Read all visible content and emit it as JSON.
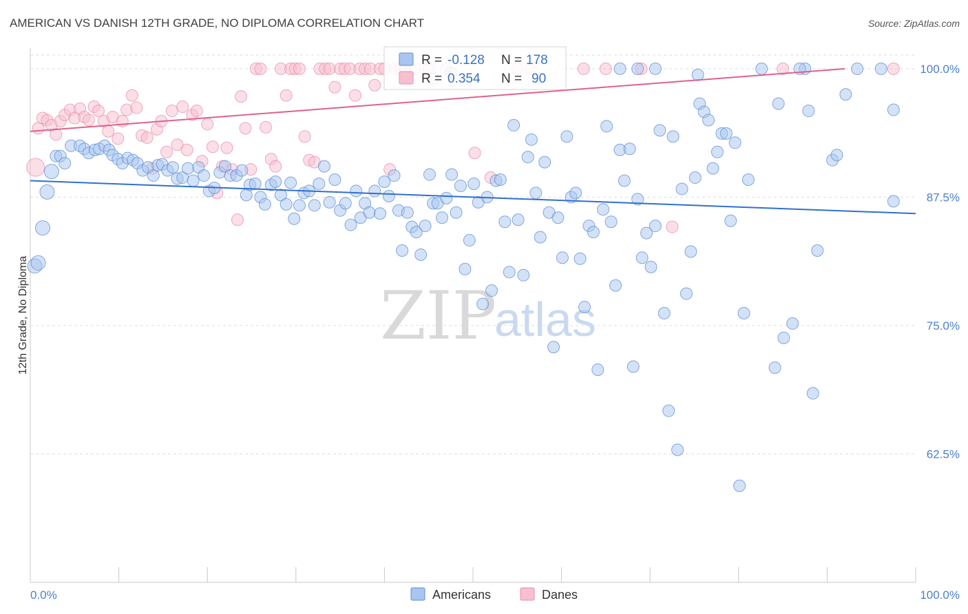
{
  "title": "AMERICAN VS DANISH 12TH GRADE, NO DIPLOMA CORRELATION CHART",
  "source": "Source: ZipAtlas.com",
  "watermark": {
    "zip": "ZIP",
    "atlas": "atlas"
  },
  "legend": {
    "r_label": "R =",
    "n_label": "N =",
    "rows": [
      {
        "r": "-0.128",
        "n": "178"
      },
      {
        "r": "0.354",
        "n": "90"
      }
    ]
  },
  "bottom_legend": [
    "Americans",
    "Danes"
  ],
  "colors": {
    "americans_fill": "#a9c6f0",
    "americans_stroke": "#5b8ed8",
    "americans_line": "#2f6fd0",
    "danes_fill": "#f7bfd0",
    "danes_stroke": "#e98cab",
    "danes_line": "#e0608a",
    "value_text": "#3a70c8",
    "grid": "#dddddd"
  },
  "chart_data": {
    "type": "scatter",
    "title": "AMERICAN VS DANISH 12TH GRADE, NO DIPLOMA CORRELATION CHART",
    "xlabel": "",
    "ylabel": "12th Grade, No Diploma",
    "xlim": [
      0,
      100
    ],
    "ylim": [
      50,
      102
    ],
    "y_ticks": [
      {
        "value": 100,
        "label": "100.0%"
      },
      {
        "value": 87.5,
        "label": "87.5%"
      },
      {
        "value": 75,
        "label": "75.0%"
      },
      {
        "value": 62.5,
        "label": "62.5%"
      }
    ],
    "x_ticks": [
      {
        "value": 0,
        "label": "0.0%"
      },
      {
        "value": 100,
        "label": "100.0%"
      }
    ],
    "grid": true,
    "legend_position": "top-center",
    "series": [
      {
        "name": "Americans",
        "r": -0.128,
        "n": 178,
        "trend": [
          [
            0,
            89.1
          ],
          [
            100,
            85.9
          ]
        ],
        "points": [
          [
            0.5,
            80.8
          ],
          [
            0.9,
            81.1
          ],
          [
            1.4,
            84.5
          ],
          [
            1.9,
            88.0
          ],
          [
            2.4,
            90.0
          ],
          [
            2.9,
            91.5
          ],
          [
            3.4,
            91.5
          ],
          [
            3.9,
            90.8
          ],
          [
            4.6,
            92.5
          ],
          [
            5.6,
            92.5
          ],
          [
            6.1,
            92.2
          ],
          [
            6.6,
            91.8
          ],
          [
            7.3,
            92.1
          ],
          [
            7.8,
            92.2
          ],
          [
            8.4,
            92.5
          ],
          [
            8.9,
            92.1
          ],
          [
            9.3,
            91.6
          ],
          [
            9.9,
            91.2
          ],
          [
            10.4,
            90.8
          ],
          [
            11.0,
            91.3
          ],
          [
            11.6,
            91.1
          ],
          [
            12.1,
            90.8
          ],
          [
            12.7,
            90.1
          ],
          [
            13.3,
            90.4
          ],
          [
            13.9,
            89.6
          ],
          [
            14.4,
            90.6
          ],
          [
            14.9,
            90.7
          ],
          [
            15.5,
            90.1
          ],
          [
            16.1,
            90.4
          ],
          [
            16.6,
            89.3
          ],
          [
            17.2,
            89.4
          ],
          [
            17.8,
            90.3
          ],
          [
            18.4,
            89.1
          ],
          [
            19.0,
            90.4
          ],
          [
            19.6,
            89.6
          ],
          [
            20.2,
            88.1
          ],
          [
            20.8,
            88.4
          ],
          [
            21.4,
            89.9
          ],
          [
            22.0,
            90.5
          ],
          [
            22.6,
            89.6
          ],
          [
            23.3,
            89.6
          ],
          [
            23.9,
            90.1
          ],
          [
            24.4,
            87.7
          ],
          [
            24.8,
            88.7
          ],
          [
            25.4,
            88.8
          ],
          [
            26.0,
            87.5
          ],
          [
            26.5,
            86.8
          ],
          [
            27.2,
            88.7
          ],
          [
            27.7,
            89.0
          ],
          [
            28.3,
            87.7
          ],
          [
            28.9,
            86.8
          ],
          [
            29.4,
            88.9
          ],
          [
            29.8,
            85.4
          ],
          [
            30.4,
            86.7
          ],
          [
            30.9,
            87.9
          ],
          [
            31.5,
            88.1
          ],
          [
            32.1,
            86.7
          ],
          [
            32.6,
            88.8
          ],
          [
            33.2,
            90.5
          ],
          [
            33.8,
            87.0
          ],
          [
            34.4,
            89.2
          ],
          [
            35.0,
            86.2
          ],
          [
            35.6,
            86.9
          ],
          [
            36.2,
            84.8
          ],
          [
            36.8,
            88.1
          ],
          [
            37.3,
            85.5
          ],
          [
            37.8,
            86.9
          ],
          [
            38.3,
            86.0
          ],
          [
            38.9,
            88.1
          ],
          [
            39.5,
            85.9
          ],
          [
            40.0,
            89.0
          ],
          [
            40.5,
            87.6
          ],
          [
            41.1,
            89.6
          ],
          [
            41.6,
            86.2
          ],
          [
            42.0,
            82.3
          ],
          [
            42.6,
            86.0
          ],
          [
            43.1,
            84.6
          ],
          [
            43.6,
            84.1
          ],
          [
            44.1,
            81.9
          ],
          [
            44.6,
            84.7
          ],
          [
            45.1,
            89.7
          ],
          [
            45.5,
            86.9
          ],
          [
            46.0,
            86.9
          ],
          [
            46.5,
            85.5
          ],
          [
            47.0,
            87.4
          ],
          [
            47.6,
            89.7
          ],
          [
            48.1,
            86.0
          ],
          [
            48.6,
            88.6
          ],
          [
            49.1,
            80.5
          ],
          [
            49.6,
            83.3
          ],
          [
            50.1,
            88.8
          ],
          [
            50.6,
            87.0
          ],
          [
            51.1,
            77.1
          ],
          [
            51.6,
            87.5
          ],
          [
            52.1,
            78.4
          ],
          [
            52.6,
            89.1
          ],
          [
            53.1,
            89.2
          ],
          [
            53.6,
            85.1
          ],
          [
            54.1,
            80.2
          ],
          [
            54.6,
            94.5
          ],
          [
            55.1,
            85.3
          ],
          [
            55.7,
            79.9
          ],
          [
            56.2,
            91.4
          ],
          [
            56.6,
            93.1
          ],
          [
            57.1,
            87.9
          ],
          [
            57.6,
            83.6
          ],
          [
            58.1,
            90.9
          ],
          [
            58.6,
            86.0
          ],
          [
            59.1,
            72.9
          ],
          [
            59.6,
            85.5
          ],
          [
            60.1,
            81.6
          ],
          [
            60.6,
            93.4
          ],
          [
            61.1,
            87.5
          ],
          [
            61.6,
            87.9
          ],
          [
            62.1,
            81.5
          ],
          [
            62.6,
            76.8
          ],
          [
            63.1,
            84.7
          ],
          [
            63.6,
            84.1
          ],
          [
            64.1,
            70.7
          ],
          [
            64.7,
            86.3
          ],
          [
            65.1,
            94.4
          ],
          [
            65.6,
            85.1
          ],
          [
            66.1,
            78.9
          ],
          [
            66.6,
            92.1
          ],
          [
            67.1,
            89.1
          ],
          [
            67.7,
            92.2
          ],
          [
            68.1,
            71.0
          ],
          [
            68.6,
            87.3
          ],
          [
            69.1,
            81.6
          ],
          [
            69.6,
            84.0
          ],
          [
            70.1,
            80.7
          ],
          [
            70.6,
            84.7
          ],
          [
            71.1,
            94.0
          ],
          [
            71.6,
            76.2
          ],
          [
            72.1,
            66.7
          ],
          [
            72.6,
            93.4
          ],
          [
            73.1,
            62.9
          ],
          [
            73.6,
            88.3
          ],
          [
            74.1,
            78.1
          ],
          [
            74.6,
            82.2
          ],
          [
            75.1,
            89.4
          ],
          [
            75.6,
            96.6
          ],
          [
            76.1,
            95.8
          ],
          [
            76.6,
            95.0
          ],
          [
            77.1,
            90.3
          ],
          [
            77.6,
            91.9
          ],
          [
            78.1,
            93.7
          ],
          [
            78.6,
            93.7
          ],
          [
            79.1,
            85.2
          ],
          [
            79.6,
            92.8
          ],
          [
            80.1,
            59.4
          ],
          [
            80.6,
            76.2
          ],
          [
            81.1,
            89.2
          ],
          [
            82.6,
            100.0
          ],
          [
            84.1,
            70.9
          ],
          [
            84.5,
            96.6
          ],
          [
            85.1,
            73.8
          ],
          [
            86.1,
            75.2
          ],
          [
            87.5,
            100.0
          ],
          [
            87.9,
            95.9
          ],
          [
            88.4,
            68.4
          ],
          [
            88.9,
            82.3
          ],
          [
            90.6,
            91.1
          ],
          [
            91.1,
            91.6
          ],
          [
            92.1,
            97.5
          ],
          [
            93.4,
            100.0
          ],
          [
            96.1,
            100.0
          ],
          [
            97.5,
            96.0
          ],
          [
            97.5,
            87.1
          ],
          [
            66.6,
            100.0
          ],
          [
            68.6,
            100.0
          ],
          [
            70.6,
            100.0
          ],
          [
            75.4,
            99.4
          ],
          [
            86.9,
            100.0
          ],
          [
            45.5,
            99.0
          ],
          [
            47.5,
            99.6
          ]
        ]
      },
      {
        "name": "Danes",
        "r": 0.354,
        "n": 90,
        "trend": [
          [
            0,
            93.9
          ],
          [
            92,
            100.0
          ]
        ],
        "points": [
          [
            0.6,
            90.4
          ],
          [
            0.9,
            94.2
          ],
          [
            1.4,
            95.2
          ],
          [
            1.9,
            95.0
          ],
          [
            2.4,
            94.5
          ],
          [
            2.9,
            93.6
          ],
          [
            3.4,
            94.9
          ],
          [
            3.9,
            95.5
          ],
          [
            4.5,
            96.0
          ],
          [
            5.0,
            95.2
          ],
          [
            5.6,
            96.1
          ],
          [
            6.1,
            95.3
          ],
          [
            6.6,
            95.0
          ],
          [
            7.2,
            96.3
          ],
          [
            7.7,
            95.9
          ],
          [
            8.3,
            94.9
          ],
          [
            8.8,
            93.9
          ],
          [
            9.3,
            95.3
          ],
          [
            9.9,
            93.2
          ],
          [
            10.4,
            94.9
          ],
          [
            10.9,
            96.0
          ],
          [
            11.5,
            97.4
          ],
          [
            12.0,
            96.2
          ],
          [
            12.6,
            93.5
          ],
          [
            13.2,
            93.3
          ],
          [
            13.8,
            90.3
          ],
          [
            14.3,
            94.1
          ],
          [
            14.8,
            94.9
          ],
          [
            15.4,
            91.9
          ],
          [
            16.0,
            95.9
          ],
          [
            16.6,
            92.6
          ],
          [
            17.2,
            96.3
          ],
          [
            17.7,
            92.1
          ],
          [
            18.3,
            95.5
          ],
          [
            18.8,
            95.9
          ],
          [
            19.4,
            91.0
          ],
          [
            20.0,
            94.6
          ],
          [
            20.6,
            92.4
          ],
          [
            21.1,
            87.9
          ],
          [
            21.7,
            90.5
          ],
          [
            22.2,
            92.3
          ],
          [
            22.8,
            90.2
          ],
          [
            23.4,
            85.3
          ],
          [
            23.8,
            97.3
          ],
          [
            24.3,
            94.2
          ],
          [
            24.9,
            90.2
          ],
          [
            25.5,
            100.0
          ],
          [
            26.0,
            100.0
          ],
          [
            26.6,
            94.3
          ],
          [
            27.2,
            91.2
          ],
          [
            27.7,
            90.5
          ],
          [
            28.3,
            100.0
          ],
          [
            28.9,
            97.4
          ],
          [
            29.4,
            100.0
          ],
          [
            29.9,
            100.0
          ],
          [
            30.4,
            100.0
          ],
          [
            31.0,
            93.4
          ],
          [
            31.5,
            91.1
          ],
          [
            32.1,
            90.9
          ],
          [
            32.7,
            100.0
          ],
          [
            33.3,
            100.0
          ],
          [
            33.8,
            100.0
          ],
          [
            34.4,
            98.2
          ],
          [
            35.0,
            100.0
          ],
          [
            35.5,
            100.0
          ],
          [
            36.1,
            100.0
          ],
          [
            36.7,
            97.4
          ],
          [
            37.2,
            100.0
          ],
          [
            37.8,
            100.0
          ],
          [
            38.4,
            100.0
          ],
          [
            38.9,
            98.4
          ],
          [
            39.5,
            100.0
          ],
          [
            40.0,
            100.0
          ],
          [
            40.6,
            90.2
          ],
          [
            41.2,
            100.0
          ],
          [
            41.8,
            100.0
          ],
          [
            42.3,
            100.0
          ],
          [
            43.5,
            100.0
          ],
          [
            45.0,
            100.0
          ],
          [
            47.0,
            100.0
          ],
          [
            50.2,
            91.8
          ],
          [
            52.0,
            89.4
          ],
          [
            55.0,
            100.0
          ],
          [
            56.5,
            100.0
          ],
          [
            62.5,
            100.0
          ],
          [
            65.0,
            100.0
          ],
          [
            69.0,
            100.0
          ],
          [
            72.5,
            84.6
          ],
          [
            85.0,
            100.0
          ],
          [
            97.5,
            100.0
          ]
        ]
      }
    ]
  }
}
